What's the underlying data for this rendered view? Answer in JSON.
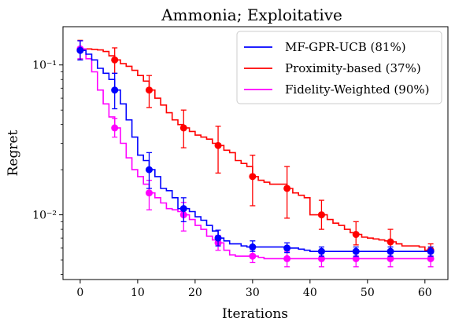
{
  "chart_data": {
    "type": "line",
    "title": "Ammonia; Exploitative",
    "xlabel": "Iterations",
    "ylabel": "Regret",
    "xlim": [
      -3,
      64
    ],
    "ylim": [
      0.0037,
      0.18
    ],
    "yscale": "log",
    "grid": false,
    "legend": "top-right",
    "x_ticks": [
      0,
      10,
      20,
      30,
      40,
      50,
      60
    ],
    "x_tick_labels": [
      "0",
      "10",
      "20",
      "30",
      "40",
      "50",
      "60"
    ],
    "y_ticks": [
      0.01,
      0.1
    ],
    "y_tick_labels": [
      "10⁻²",
      "10⁻¹"
    ],
    "series": [
      {
        "name": "MF-GPR-UCB (81%)",
        "color": "#0000ff",
        "x": [
          0,
          1,
          2,
          3,
          4,
          5,
          6,
          7,
          8,
          9,
          10,
          11,
          12,
          13,
          14,
          15,
          16,
          17,
          18,
          19,
          20,
          21,
          22,
          23,
          24,
          25,
          26,
          27,
          28,
          29,
          30,
          31,
          32,
          33,
          34,
          35,
          36,
          37,
          38,
          39,
          40,
          41,
          42,
          43,
          44,
          45,
          46,
          47,
          48,
          49,
          50,
          51,
          52,
          53,
          54,
          55,
          56,
          57,
          58,
          59,
          60,
          61
        ],
        "values": [
          0.125,
          0.118,
          0.108,
          0.095,
          0.088,
          0.08,
          0.068,
          0.055,
          0.043,
          0.033,
          0.025,
          0.023,
          0.02,
          0.018,
          0.015,
          0.0145,
          0.013,
          0.011,
          0.011,
          0.0105,
          0.0097,
          0.0092,
          0.0085,
          0.0078,
          0.007,
          0.0067,
          0.0064,
          0.0064,
          0.0062,
          0.0061,
          0.0061,
          0.0061,
          0.0061,
          0.0061,
          0.0061,
          0.0061,
          0.006,
          0.006,
          0.0059,
          0.0058,
          0.0057,
          0.0057,
          0.0057,
          0.0057,
          0.0057,
          0.0057,
          0.0057,
          0.0057,
          0.0057,
          0.0057,
          0.0057,
          0.0057,
          0.0057,
          0.0057,
          0.0057,
          0.0057,
          0.0057,
          0.0057,
          0.0057,
          0.0057,
          0.0057,
          0.0057
        ],
        "markers_x": [
          0,
          6,
          12,
          18,
          24,
          30,
          36,
          42,
          48,
          54,
          61
        ],
        "markers_y": [
          0.125,
          0.068,
          0.02,
          0.011,
          0.007,
          0.0061,
          0.006,
          0.0057,
          0.0057,
          0.0057,
          0.0057
        ],
        "err_low": [
          0.108,
          0.051,
          0.015,
          0.009,
          0.0062,
          0.0057,
          0.0056,
          0.0053,
          0.0053,
          0.0053,
          0.0053
        ],
        "err_high": [
          0.145,
          0.088,
          0.026,
          0.013,
          0.0079,
          0.0067,
          0.0065,
          0.0061,
          0.0061,
          0.0061,
          0.0061
        ]
      },
      {
        "name": "Proximity-based (37%)",
        "color": "#ff0000",
        "x": [
          0,
          1,
          2,
          3,
          4,
          5,
          6,
          7,
          8,
          9,
          10,
          11,
          12,
          13,
          14,
          15,
          16,
          17,
          18,
          19,
          20,
          21,
          22,
          23,
          24,
          25,
          26,
          27,
          28,
          29,
          30,
          31,
          32,
          33,
          34,
          35,
          36,
          37,
          38,
          39,
          40,
          41,
          42,
          43,
          44,
          45,
          46,
          47,
          48,
          49,
          50,
          51,
          52,
          53,
          54,
          55,
          56,
          57,
          58,
          59,
          60,
          61
        ],
        "values": [
          0.126,
          0.128,
          0.127,
          0.126,
          0.123,
          0.115,
          0.108,
          0.102,
          0.098,
          0.092,
          0.085,
          0.078,
          0.068,
          0.06,
          0.054,
          0.048,
          0.043,
          0.04,
          0.038,
          0.036,
          0.034,
          0.033,
          0.032,
          0.03,
          0.029,
          0.027,
          0.026,
          0.023,
          0.022,
          0.021,
          0.018,
          0.017,
          0.0165,
          0.016,
          0.016,
          0.016,
          0.015,
          0.014,
          0.0135,
          0.013,
          0.01,
          0.01,
          0.01,
          0.0093,
          0.0088,
          0.0085,
          0.008,
          0.0076,
          0.0074,
          0.0071,
          0.007,
          0.0069,
          0.0068,
          0.0067,
          0.0066,
          0.0064,
          0.0062,
          0.0062,
          0.0062,
          0.0061,
          0.0058,
          0.0058
        ],
        "markers_x": [
          0,
          6,
          12,
          18,
          24,
          30,
          36,
          42,
          48,
          54,
          61
        ],
        "markers_y": [
          0.126,
          0.108,
          0.068,
          0.038,
          0.029,
          0.018,
          0.015,
          0.01,
          0.0074,
          0.0066,
          0.0058
        ],
        "err_low": [
          0.108,
          0.088,
          0.052,
          0.028,
          0.019,
          0.0115,
          0.0095,
          0.008,
          0.0063,
          0.0058,
          0.0053
        ],
        "err_high": [
          0.146,
          0.13,
          0.085,
          0.05,
          0.039,
          0.025,
          0.021,
          0.0125,
          0.009,
          0.008,
          0.0064
        ]
      },
      {
        "name": "Fidelity-Weighted (90%)",
        "color": "#ff00ff",
        "x": [
          0,
          1,
          2,
          3,
          4,
          5,
          6,
          7,
          8,
          9,
          10,
          11,
          12,
          13,
          14,
          15,
          16,
          17,
          18,
          19,
          20,
          21,
          22,
          23,
          24,
          25,
          26,
          27,
          28,
          29,
          30,
          31,
          32,
          33,
          34,
          35,
          36,
          37,
          38,
          39,
          40,
          41,
          42,
          43,
          44,
          45,
          46,
          47,
          48,
          49,
          50,
          51,
          52,
          53,
          54,
          55,
          56,
          57,
          58,
          59,
          60,
          61
        ],
        "values": [
          0.128,
          0.11,
          0.09,
          0.068,
          0.055,
          0.045,
          0.038,
          0.03,
          0.024,
          0.02,
          0.018,
          0.016,
          0.014,
          0.013,
          0.012,
          0.011,
          0.0108,
          0.0105,
          0.01,
          0.0093,
          0.0085,
          0.008,
          0.0072,
          0.0068,
          0.0065,
          0.0058,
          0.0054,
          0.0053,
          0.0053,
          0.0053,
          0.0053,
          0.0052,
          0.0051,
          0.0051,
          0.0051,
          0.0051,
          0.0051,
          0.0051,
          0.0051,
          0.0051,
          0.0051,
          0.0051,
          0.0051,
          0.0051,
          0.0051,
          0.0051,
          0.0051,
          0.0051,
          0.0051,
          0.0051,
          0.0051,
          0.0051,
          0.0051,
          0.0051,
          0.0051,
          0.0051,
          0.0051,
          0.0051,
          0.0051,
          0.0051,
          0.0051,
          0.0051
        ],
        "markers_x": [
          0,
          6,
          12,
          18,
          24,
          30,
          36,
          42,
          48,
          54,
          61
        ],
        "markers_y": [
          0.128,
          0.038,
          0.014,
          0.01,
          0.0065,
          0.0053,
          0.0051,
          0.0051,
          0.0051,
          0.0051,
          0.0051
        ],
        "err_low": [
          0.11,
          0.033,
          0.0108,
          0.0078,
          0.0058,
          0.0048,
          0.0045,
          0.0045,
          0.0045,
          0.0045,
          0.0045
        ],
        "err_high": [
          0.145,
          0.044,
          0.017,
          0.0121,
          0.0073,
          0.0059,
          0.0057,
          0.0057,
          0.0057,
          0.0057,
          0.0057
        ]
      }
    ]
  }
}
